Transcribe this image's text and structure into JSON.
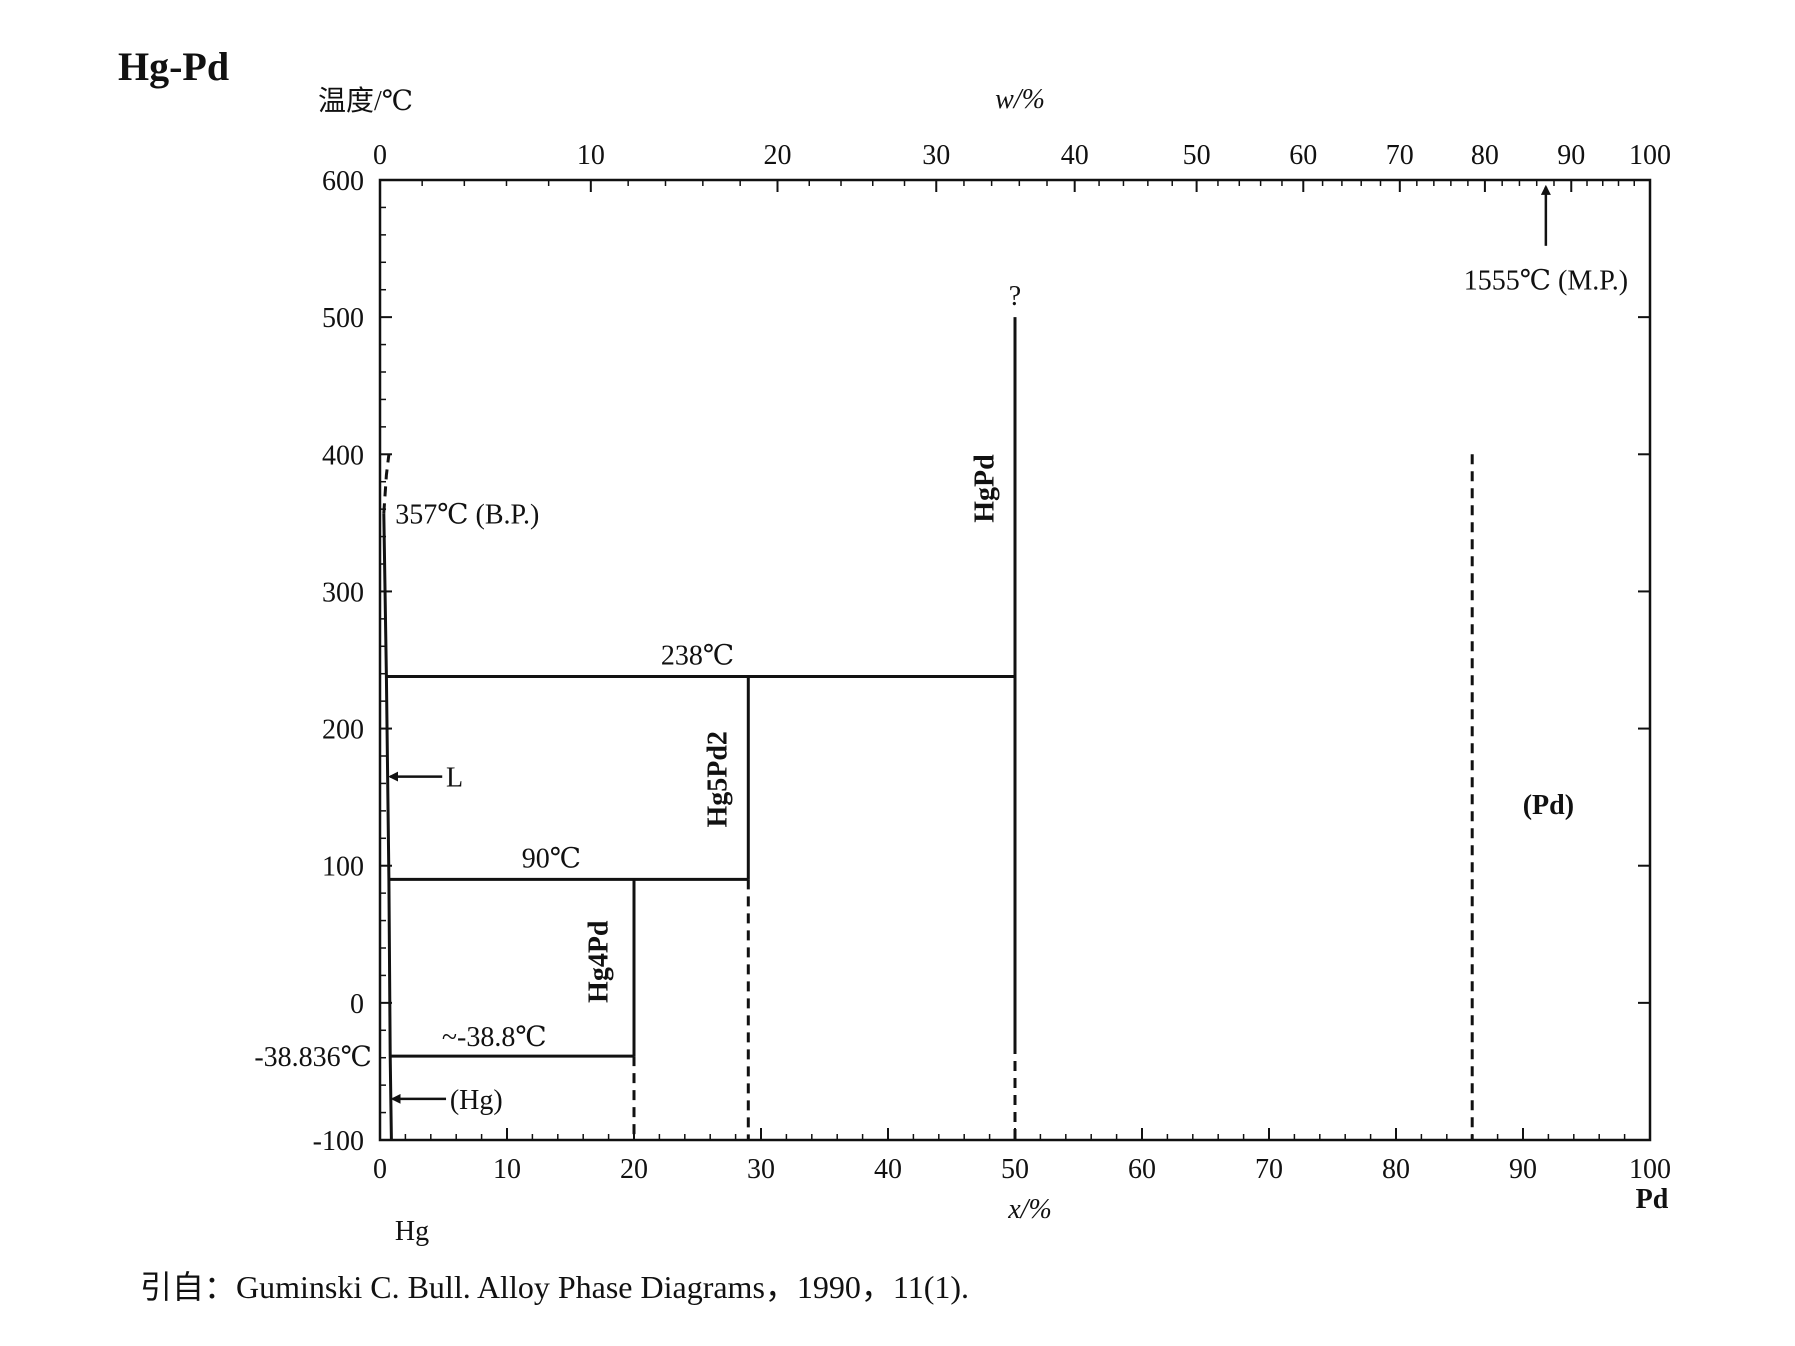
{
  "chart_data": {
    "type": "phase-diagram",
    "title": "Hg-Pd",
    "ylabel": "温度/℃",
    "top_xlabel": "w/%",
    "bottom_xlabel": "x/%",
    "left_element": "Hg",
    "right_element": "Pd",
    "xlim": [
      0,
      100
    ],
    "ylim": [
      -100,
      600
    ],
    "x_ticks": [
      "0",
      "10",
      "20",
      "30",
      "40",
      "50",
      "60",
      "70",
      "80",
      "90",
      "100"
    ],
    "y_ticks": [
      "600",
      "500",
      "400",
      "300",
      "200",
      "100",
      "0",
      "-100"
    ],
    "w_ticks": [
      {
        "label": "0",
        "x": 0
      },
      {
        "label": "10",
        "x": 16.6
      },
      {
        "label": "20",
        "x": 31.3
      },
      {
        "label": "30",
        "x": 43.8
      },
      {
        "label": "40",
        "x": 54.7
      },
      {
        "label": "50",
        "x": 64.3
      },
      {
        "label": "60",
        "x": 72.7
      },
      {
        "label": "70",
        "x": 80.3
      },
      {
        "label": "80",
        "x": 87.0
      },
      {
        "label": "90",
        "x": 93.8
      },
      {
        "label": "100",
        "x": 100
      }
    ],
    "lines": [
      {
        "name": "liquidus-near-hg",
        "style": "solid",
        "points": [
          [
            0.3,
            357
          ],
          [
            0.5,
            238
          ],
          [
            0.7,
            90
          ],
          [
            0.8,
            -38.8
          ],
          [
            0.9,
            -100
          ]
        ]
      },
      {
        "name": "boiling-curve",
        "style": "dashed",
        "points": [
          [
            0.3,
            357
          ],
          [
            0.5,
            385
          ],
          [
            0.7,
            400
          ]
        ]
      },
      {
        "name": "peritectic-238",
        "style": "solid",
        "points": [
          [
            0.5,
            238
          ],
          [
            50,
            238
          ]
        ]
      },
      {
        "name": "peritectic-90",
        "style": "solid",
        "points": [
          [
            0.7,
            90
          ],
          [
            29,
            90
          ]
        ]
      },
      {
        "name": "eutectic-minus-38.8",
        "style": "solid",
        "points": [
          [
            0.8,
            -38.8
          ],
          [
            20,
            -38.8
          ]
        ]
      },
      {
        "name": "hg4pd-solid",
        "style": "solid",
        "points": [
          [
            20,
            90
          ],
          [
            20,
            -38.8
          ]
        ]
      },
      {
        "name": "hg4pd-dashed",
        "style": "dashed",
        "points": [
          [
            20,
            -38.8
          ],
          [
            20,
            -100
          ]
        ]
      },
      {
        "name": "hg5pd2-solid",
        "style": "solid",
        "points": [
          [
            29,
            238
          ],
          [
            29,
            90
          ]
        ]
      },
      {
        "name": "hg5pd2-dashed",
        "style": "dashed",
        "points": [
          [
            29,
            90
          ],
          [
            29,
            -100
          ]
        ]
      },
      {
        "name": "hgpd-solid",
        "style": "solid",
        "points": [
          [
            50,
            500
          ],
          [
            50,
            -30
          ]
        ]
      },
      {
        "name": "hgpd-dashed",
        "style": "dashed",
        "points": [
          [
            50,
            -30
          ],
          [
            50,
            -100
          ]
        ]
      },
      {
        "name": "pd-solvus",
        "style": "dashed",
        "points": [
          [
            86,
            400
          ],
          [
            86,
            -100
          ]
        ]
      }
    ],
    "annotations": {
      "bp": "357℃ (B.P.)",
      "mp": "1555℃ (M.P.)",
      "t238": "238℃",
      "t90": "90℃",
      "t_eut": "~-38.8℃",
      "hg_melt": "-38.836℃",
      "question": "?",
      "liquid": "L",
      "hg_phase": "(Hg)",
      "pd_phase": "(Pd)",
      "hgpd": "HgPd",
      "hg5pd2": "Hg5Pd2",
      "hg4pd": "Hg4Pd"
    }
  },
  "citation": "引自：Guminski C.  Bull.  Alloy Phase Diagrams，1990，11(1)."
}
